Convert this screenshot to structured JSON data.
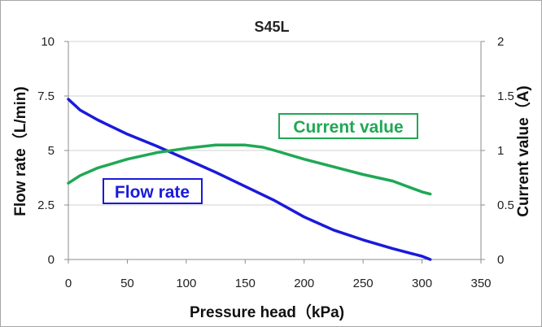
{
  "chart_data": {
    "type": "line",
    "title": "S45L",
    "xlabel": "Pressure head（kPa)",
    "ylabel": "Flow rate（L/min)",
    "y2label": "Current value（A)",
    "xlim": [
      0,
      350
    ],
    "ylim": [
      0,
      10
    ],
    "y2lim": [
      0,
      2
    ],
    "x_ticks": [
      "0",
      "50",
      "100",
      "150",
      "200",
      "250",
      "300",
      "350"
    ],
    "y_ticks": [
      "0",
      "2.5",
      "5",
      "7.5",
      "10"
    ],
    "y2_ticks": [
      "0",
      "0.5",
      "1",
      "1.5",
      "2"
    ],
    "grid": "horizontal",
    "series": [
      {
        "name": "Flow rate",
        "axis": "left",
        "color": "#1a1adb",
        "x": [
          0,
          10,
          25,
          50,
          75,
          100,
          125,
          150,
          175,
          200,
          225,
          250,
          275,
          300,
          307
        ],
        "y": [
          7.35,
          6.85,
          6.4,
          5.75,
          5.2,
          4.6,
          4.0,
          3.35,
          2.7,
          1.95,
          1.35,
          0.9,
          0.5,
          0.15,
          0.0
        ]
      },
      {
        "name": "Current value",
        "axis": "right",
        "color": "#1fa854",
        "x": [
          0,
          10,
          25,
          50,
          75,
          100,
          125,
          150,
          165,
          175,
          200,
          225,
          250,
          275,
          300,
          307
        ],
        "y": [
          0.7,
          0.77,
          0.84,
          0.92,
          0.98,
          1.02,
          1.05,
          1.05,
          1.03,
          1.0,
          0.92,
          0.85,
          0.78,
          0.72,
          0.62,
          0.6
        ]
      }
    ]
  }
}
